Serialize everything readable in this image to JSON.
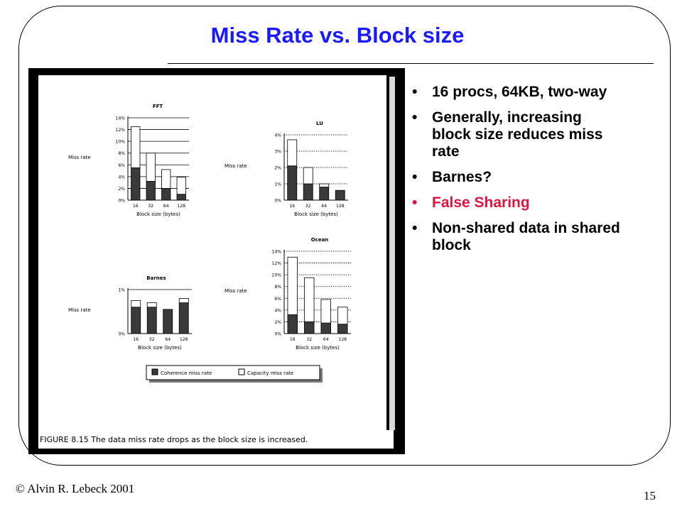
{
  "slide": {
    "title": "Miss Rate vs. Block size",
    "bullets": [
      {
        "text": "16 procs, 64KB, two-way",
        "color": "#000000"
      },
      {
        "text": "Generally, increasing block size reduces miss rate",
        "color": "#000000"
      },
      {
        "text": "Barnes?",
        "color": "#000000"
      },
      {
        "text": "False Sharing",
        "color": "#e0143c"
      },
      {
        "text": "Non-shared data in shared block",
        "color": "#000000"
      }
    ],
    "footer": "© Alvin R. Lebeck 2001",
    "page_number": "15",
    "accent_color": "#1a1aff"
  },
  "figure": {
    "caption": "FIGURE 8.15  The data miss rate drops as the block size is increased.",
    "legend": {
      "coherence": "Coherence miss rate",
      "capacity": "Capacity miss rate"
    }
  },
  "chart_data": [
    {
      "type": "bar",
      "title": "FFT",
      "xlabel": "Block size (bytes)",
      "ylabel": "Miss rate",
      "categories": [
        "16",
        "32",
        "64",
        "128"
      ],
      "yticks": [
        "0%",
        "2%",
        "4%",
        "6%",
        "8%",
        "10%",
        "12%",
        "14%"
      ],
      "ylim": [
        0,
        14
      ],
      "stacked": true,
      "series": [
        {
          "name": "Coherence miss rate",
          "values": [
            5.5,
            3.2,
            2.0,
            1.0
          ]
        },
        {
          "name": "Capacity miss rate",
          "values": [
            7.0,
            4.8,
            3.2,
            2.9
          ]
        }
      ]
    },
    {
      "type": "bar",
      "title": "LU",
      "xlabel": "Block size (bytes)",
      "ylabel": "Miss rate",
      "categories": [
        "16",
        "32",
        "64",
        "128"
      ],
      "yticks": [
        "0%",
        "1%",
        "2%",
        "3%",
        "4%"
      ],
      "ylim": [
        0,
        4
      ],
      "stacked": true,
      "series": [
        {
          "name": "Coherence miss rate",
          "values": [
            2.1,
            1.0,
            0.8,
            0.6
          ]
        },
        {
          "name": "Capacity miss rate",
          "values": [
            1.6,
            1.0,
            0.2,
            0.0
          ]
        }
      ]
    },
    {
      "type": "bar",
      "title": "Barnes",
      "xlabel": "Block size (bytes)",
      "ylabel": "Miss rate",
      "categories": [
        "16",
        "32",
        "64",
        "128"
      ],
      "yticks": [
        "0%",
        "1%"
      ],
      "ylim": [
        0,
        1
      ],
      "stacked": true,
      "series": [
        {
          "name": "Coherence miss rate",
          "values": [
            0.6,
            0.6,
            0.55,
            0.7
          ]
        },
        {
          "name": "Capacity miss rate",
          "values": [
            0.15,
            0.1,
            0.0,
            0.1
          ]
        }
      ]
    },
    {
      "type": "bar",
      "title": "Ocean",
      "xlabel": "Block size (bytes)",
      "ylabel": "Miss rate",
      "categories": [
        "16",
        "32",
        "64",
        "128"
      ],
      "yticks": [
        "0%",
        "2%",
        "4%",
        "6%",
        "8%",
        "10%",
        "12%",
        "14%"
      ],
      "ylim": [
        0,
        14
      ],
      "stacked": true,
      "series": [
        {
          "name": "Coherence miss rate",
          "values": [
            3.2,
            2.0,
            1.8,
            1.6
          ]
        },
        {
          "name": "Capacity miss rate",
          "values": [
            9.8,
            7.5,
            4.0,
            2.9
          ]
        }
      ]
    }
  ]
}
